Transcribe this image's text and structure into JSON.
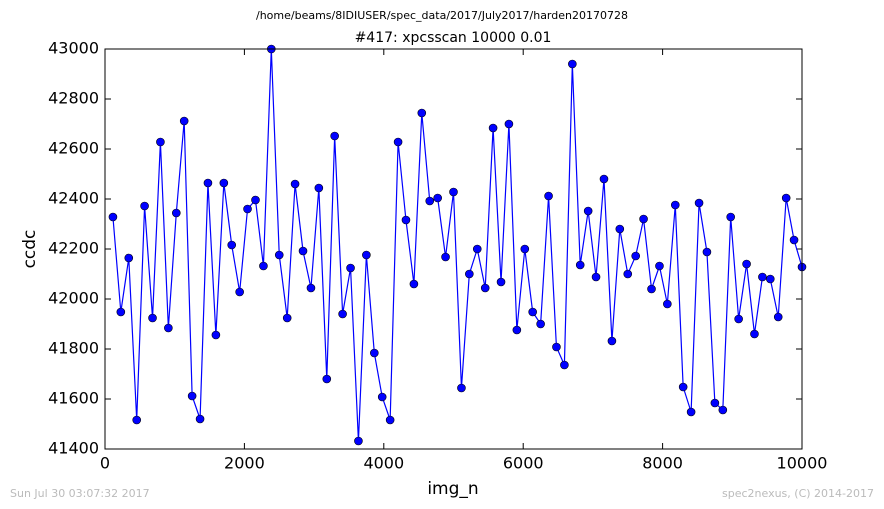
{
  "chart_data": {
    "type": "line",
    "suptitle": "/home/beams/8IDIUSER/spec_data/2017/July2017/harden20170728",
    "title": "#417: xpcsscan 10000 0.01",
    "x_label": "img_n",
    "y_label": "ccdc",
    "footer_left": "Sun Jul 30 03:07:32 2017",
    "footer_right": "spec2nexus, (C) 2014-2017",
    "xlim": [
      0,
      10000
    ],
    "xticks": [
      0,
      2000,
      4000,
      6000,
      8000,
      10000
    ],
    "ylim": [
      41400,
      43000
    ],
    "yticks": [
      41400,
      41600,
      41800,
      42000,
      42200,
      42400,
      42600,
      42800,
      43000
    ],
    "x": [
      114,
      227,
      341,
      455,
      568,
      682,
      795,
      909,
      1023,
      1136,
      1250,
      1364,
      1477,
      1591,
      1705,
      1818,
      1932,
      2045,
      2159,
      2273,
      2386,
      2500,
      2614,
      2727,
      2841,
      2955,
      3068,
      3182,
      3295,
      3409,
      3523,
      3636,
      3750,
      3864,
      3977,
      4091,
      4205,
      4318,
      4432,
      4545,
      4659,
      4773,
      4886,
      5000,
      5114,
      5227,
      5341,
      5455,
      5568,
      5682,
      5795,
      5909,
      6023,
      6136,
      6250,
      6364,
      6477,
      6591,
      6705,
      6818,
      6932,
      7045,
      7159,
      7273,
      7386,
      7500,
      7614,
      7727,
      7841,
      7955,
      8068,
      8182,
      8295,
      8409,
      8523,
      8636,
      8750,
      8864,
      8977,
      9091,
      9205,
      9318,
      9432,
      9545,
      9659,
      9773,
      9886,
      10000
    ],
    "series": [
      {
        "color": "#0000ff",
        "values": [
          42328,
          41948,
          42164,
          41516,
          42372,
          41924,
          42628,
          41884,
          42344,
          42712,
          41612,
          41520,
          42464,
          41856,
          42464,
          42216,
          42028,
          42360,
          42396,
          42132,
          43000,
          42176,
          41924,
          42460,
          42192,
          42044,
          42444,
          41680,
          42652,
          41940,
          42124,
          41432,
          42176,
          41784,
          41608,
          41516,
          42628,
          42316,
          42060,
          42744,
          42392,
          42404,
          42168,
          42428,
          41644,
          42100,
          42200,
          42044,
          42684,
          42068,
          42700,
          41876,
          42200,
          41948,
          41900,
          42412,
          41808,
          41736,
          42940,
          42136,
          42352,
          42088,
          42480,
          41832,
          42280,
          42100,
          42172,
          42320,
          42040,
          42132,
          41980,
          42376,
          41648,
          41548,
          42384,
          42188,
          41584,
          41556,
          42328,
          41920,
          42140,
          41860,
          42088,
          42080,
          41928,
          42404,
          42236,
          42128
        ]
      }
    ]
  }
}
